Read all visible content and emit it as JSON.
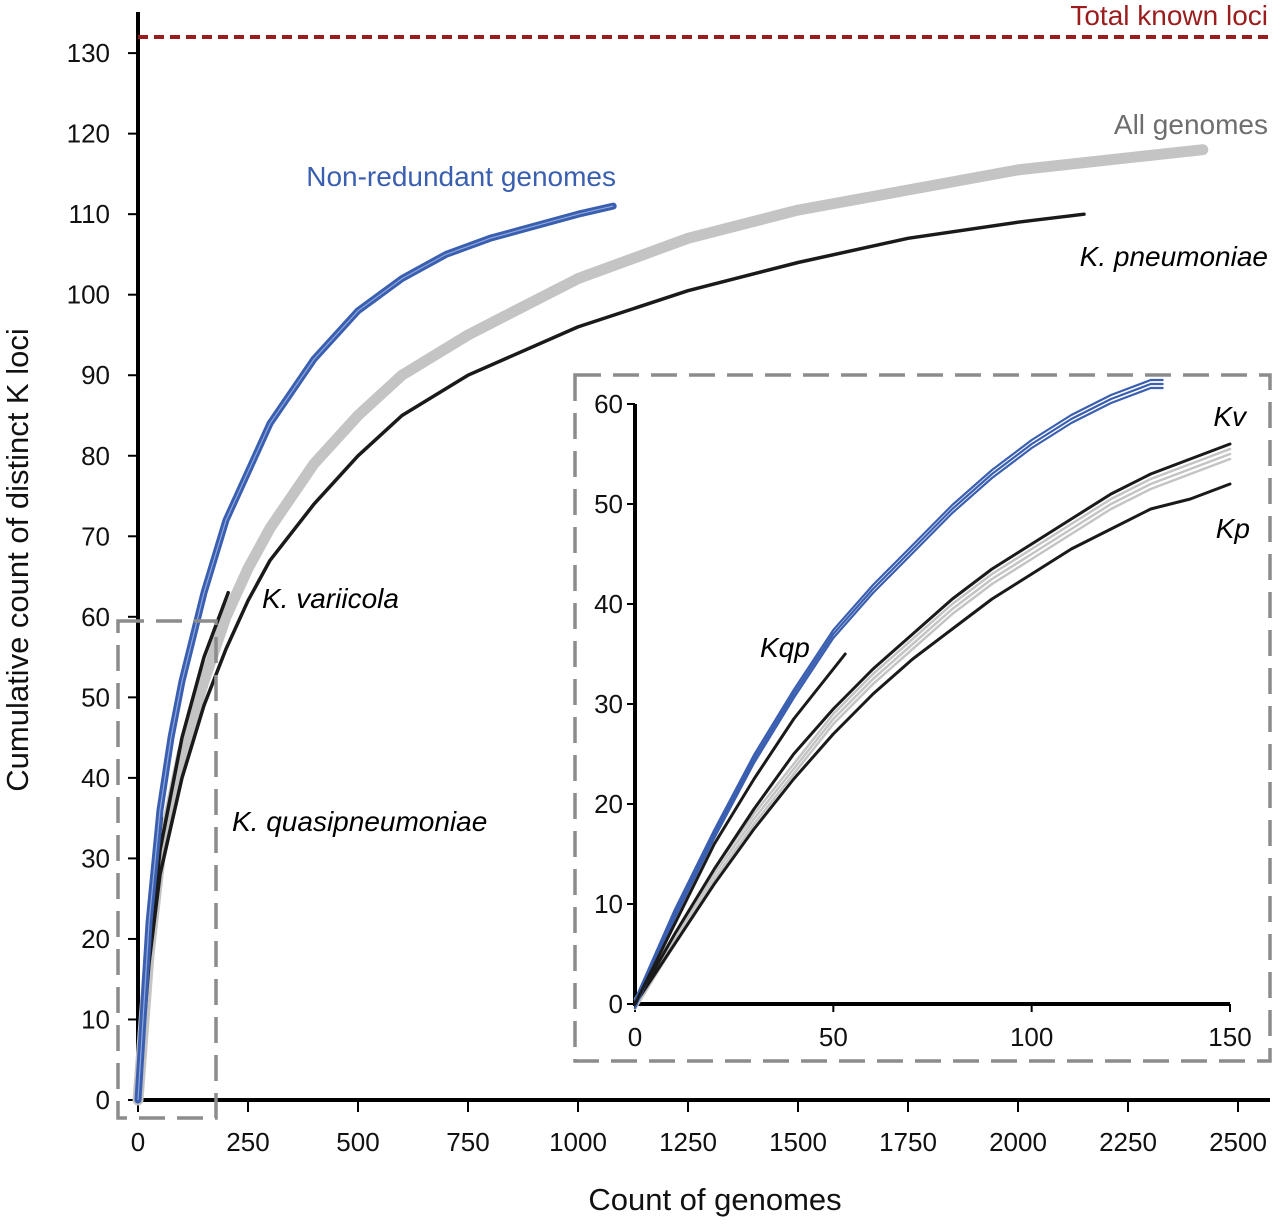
{
  "colors": {
    "non_redundant": "#3a5fb0",
    "all_genomes": "#c4c4c4",
    "k_pneumoniae": "#1a1a1a",
    "total_known": "#9b1c1c",
    "zoom_box": "#8c8c8c"
  },
  "labels": {
    "total_known": "Total known loci",
    "all_genomes": "All genomes",
    "non_redundant": "Non-redundant genomes",
    "k_pneumoniae": "K. pneumoniae",
    "k_variicola": "K. variicola",
    "k_quasipneumoniae": "K. quasipneumoniae",
    "inset_kv": "Kv",
    "inset_kp": "Kp",
    "inset_kqp": "Kqp"
  },
  "chart_data": [
    {
      "type": "line",
      "xlabel": "Count of genomes",
      "ylabel": "Cumulative count of distinct K loci",
      "xlim": [
        0,
        2550
      ],
      "ylim": [
        0,
        132
      ],
      "xticks": [
        0,
        250,
        500,
        750,
        1000,
        1250,
        1500,
        1750,
        2000,
        2250,
        2500
      ],
      "yticks": [
        0,
        10,
        20,
        30,
        40,
        50,
        60,
        70,
        80,
        90,
        100,
        110,
        120,
        130
      ],
      "reference_line": {
        "name": "Total known loci",
        "y": 132,
        "style": "dashed"
      },
      "series": [
        {
          "name": "Non-redundant genomes",
          "x": [
            0,
            25,
            50,
            75,
            100,
            150,
            200,
            250,
            300,
            400,
            500,
            600,
            700,
            800,
            900,
            1000,
            1080
          ],
          "y": [
            0,
            22,
            36,
            45,
            52,
            63,
            72,
            78,
            84,
            92,
            98,
            102,
            105,
            107,
            108.5,
            110,
            111
          ]
        },
        {
          "name": "All genomes",
          "x": [
            0,
            25,
            50,
            100,
            150,
            200,
            250,
            300,
            400,
            500,
            600,
            750,
            1000,
            1250,
            1500,
            1750,
            2000,
            2250,
            2420
          ],
          "y": [
            0,
            18,
            30,
            43,
            52,
            60,
            66,
            71,
            79,
            85,
            90,
            95,
            102,
            107,
            110.5,
            113,
            115.5,
            117,
            118
          ]
        },
        {
          "name": "K. pneumoniae",
          "x": [
            0,
            25,
            50,
            100,
            150,
            200,
            250,
            300,
            400,
            500,
            600,
            750,
            1000,
            1250,
            1500,
            1750,
            2000,
            2150
          ],
          "y": [
            0,
            17,
            28,
            40,
            49,
            56,
            62,
            67,
            74,
            80,
            85,
            90,
            96,
            100.5,
            104,
            107,
            109,
            110
          ]
        },
        {
          "name": "K. variicola",
          "x": [
            0,
            25,
            50,
            100,
            150,
            205
          ],
          "y": [
            0,
            18,
            31,
            45,
            55,
            63
          ]
        },
        {
          "name": "K. quasipneumoniae",
          "x": [
            0,
            25,
            53
          ],
          "y": [
            0,
            20,
            35
          ]
        }
      ]
    },
    {
      "type": "line",
      "inset": true,
      "xlim": [
        0,
        150
      ],
      "ylim": [
        0,
        60
      ],
      "xticks": [
        0,
        50,
        100,
        150
      ],
      "yticks": [
        0,
        10,
        20,
        30,
        40,
        50,
        60
      ],
      "series": [
        {
          "name": "Non-redundant genomes",
          "x": [
            0,
            10,
            20,
            30,
            40,
            50,
            60,
            70,
            80,
            90,
            100,
            110,
            120,
            130,
            133
          ],
          "y": [
            0,
            9,
            17,
            24.5,
            31,
            37,
            41.5,
            45.5,
            49.5,
            53,
            56,
            58.5,
            60.5,
            62,
            62
          ]
        },
        {
          "name": "Kv",
          "x": [
            0,
            10,
            20,
            30,
            40,
            50,
            60,
            70,
            80,
            90,
            100,
            110,
            120,
            130,
            140,
            150
          ],
          "y": [
            0,
            7,
            13.5,
            19.5,
            25,
            29.5,
            33.5,
            37,
            40.5,
            43.5,
            46,
            48.5,
            51,
            53,
            54.5,
            56
          ]
        },
        {
          "name": "All genomes",
          "x": [
            0,
            10,
            20,
            30,
            40,
            50,
            60,
            70,
            80,
            90,
            100,
            110,
            120,
            130,
            140,
            150
          ],
          "y": [
            0,
            6.5,
            13,
            18.5,
            23.5,
            28.5,
            32.5,
            36,
            39.5,
            42.5,
            45,
            47.5,
            50,
            52,
            53.5,
            55
          ]
        },
        {
          "name": "Kp",
          "x": [
            0,
            10,
            20,
            30,
            40,
            50,
            60,
            70,
            80,
            90,
            100,
            110,
            120,
            130,
            140,
            150
          ],
          "y": [
            0,
            6,
            12,
            17.5,
            22.5,
            27,
            31,
            34.5,
            37.5,
            40.5,
            43,
            45.5,
            47.5,
            49.5,
            50.5,
            52
          ]
        },
        {
          "name": "Kqp",
          "x": [
            0,
            10,
            20,
            30,
            40,
            53
          ],
          "y": [
            0,
            8,
            16,
            22.5,
            28.5,
            35
          ]
        }
      ]
    }
  ]
}
